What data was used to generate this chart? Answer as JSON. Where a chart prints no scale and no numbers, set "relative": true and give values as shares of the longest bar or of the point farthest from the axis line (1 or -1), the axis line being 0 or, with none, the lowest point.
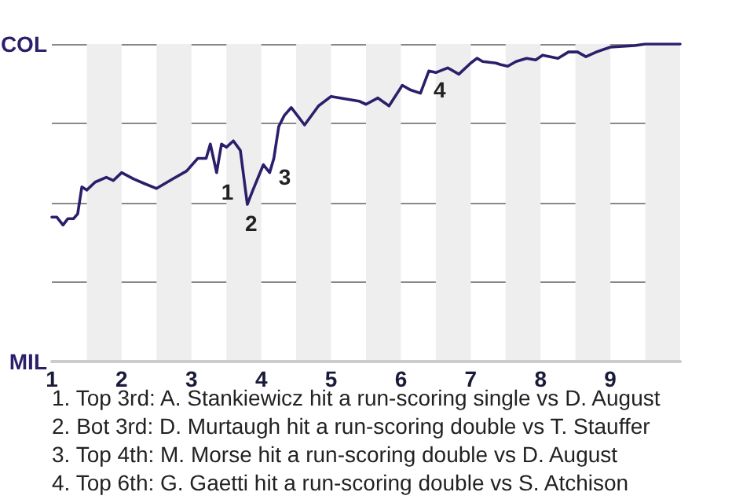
{
  "chart_data": {
    "type": "line",
    "relative": true,
    "x": [
      1,
      1.07,
      1.16,
      1.23,
      1.31,
      1.37,
      1.43,
      1.5,
      1.62,
      1.78,
      1.88,
      2,
      2.17,
      2.33,
      2.5,
      2.73,
      2.93,
      3.09,
      3.21,
      3.27,
      3.36,
      3.43,
      3.5,
      3.6,
      3.7,
      3.8,
      3.88,
      4.03,
      4.12,
      4.18,
      4.25,
      4.33,
      4.43,
      4.62,
      4.82,
      5,
      5.4,
      5.5,
      5.67,
      5.83,
      6.02,
      6.14,
      6.28,
      6.4,
      6.5,
      6.67,
      6.83,
      7,
      7.09,
      7.17,
      7.36,
      7.43,
      7.53,
      7.65,
      7.8,
      7.93,
      8.03,
      8.25,
      8.4,
      8.53,
      8.65,
      8.8,
      9,
      9.35,
      9.5,
      10
    ],
    "series": [
      {
        "color": "#2b1f6b",
        "values": [
          0.455,
          0.455,
          0.43,
          0.45,
          0.45,
          0.465,
          0.55,
          0.54,
          0.565,
          0.58,
          0.57,
          0.595,
          0.575,
          0.56,
          0.545,
          0.575,
          0.6,
          0.64,
          0.64,
          0.685,
          0.595,
          0.685,
          0.675,
          0.695,
          0.665,
          0.495,
          0.54,
          0.62,
          0.595,
          0.64,
          0.74,
          0.775,
          0.8,
          0.745,
          0.805,
          0.835,
          0.82,
          0.81,
          0.83,
          0.805,
          0.87,
          0.855,
          0.845,
          0.915,
          0.91,
          0.925,
          0.905,
          0.94,
          0.955,
          0.945,
          0.94,
          0.935,
          0.93,
          0.945,
          0.955,
          0.95,
          0.965,
          0.955,
          0.975,
          0.975,
          0.96,
          0.975,
          0.99,
          0.995,
          1,
          1
        ]
      }
    ],
    "xlim": [
      1,
      10
    ],
    "xticks": [
      1,
      2,
      3,
      4,
      5,
      6,
      7,
      8,
      9
    ],
    "grid": "y",
    "marker": "none",
    "bands": [
      {
        "axis": "x",
        "from": 1.5,
        "to": 2,
        "color": "#eeeeee"
      },
      {
        "axis": "x",
        "from": 2.5,
        "to": 3,
        "color": "#eeeeee"
      },
      {
        "axis": "x",
        "from": 3.5,
        "to": 4,
        "color": "#eeeeee"
      },
      {
        "axis": "x",
        "from": 4.5,
        "to": 5,
        "color": "#eeeeee"
      },
      {
        "axis": "x",
        "from": 5.5,
        "to": 6,
        "color": "#eeeeee"
      },
      {
        "axis": "x",
        "from": 6.5,
        "to": 7,
        "color": "#eeeeee"
      },
      {
        "axis": "x",
        "from": 7.5,
        "to": 8,
        "color": "#eeeeee"
      },
      {
        "axis": "x",
        "from": 8.5,
        "to": 9,
        "color": "#eeeeee"
      },
      {
        "axis": "x",
        "from": 9.5,
        "to": 10,
        "color": "#eeeeee"
      }
    ],
    "annotations": [
      "COL",
      "MIL",
      {
        "text": "1",
        "x": 3.36,
        "y": 0.595
      },
      {
        "text": "2",
        "x": 3.7,
        "y": 0.495
      },
      {
        "text": "3",
        "x": 4.18,
        "y": 0.64
      },
      {
        "text": "4",
        "x": 6.4,
        "y": 0.915
      },
      "1. Top 3rd: A. Stankiewicz hit a run-scoring single vs D. August",
      "2. Bot 3rd: D. Murtaugh hit a run-scoring double vs T. Stauffer",
      "3. Top 4th: M. Morse hit a run-scoring double vs D. August",
      "4. Top 6th: G. Gaetti hit a run-scoring double vs S. Atchison"
    ]
  }
}
